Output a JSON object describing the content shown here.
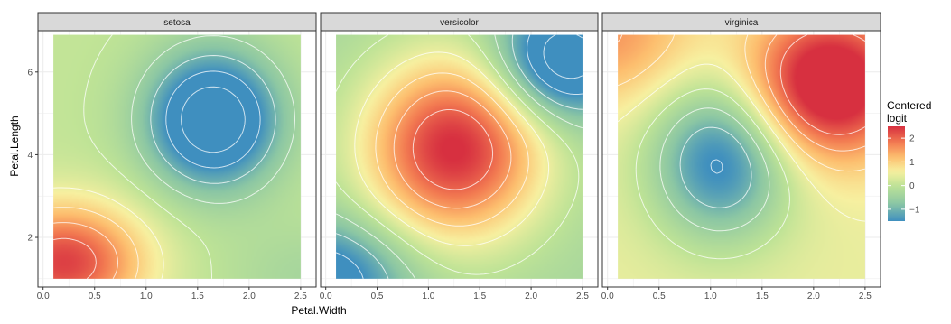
{
  "chart_data": {
    "type": "heatmap",
    "facets": [
      "setosa",
      "versicolor",
      "virginica"
    ],
    "xlabel": "Petal.Width",
    "ylabel": "Petal.Length",
    "xlim": [
      -0.05,
      2.65
    ],
    "ylim": [
      0.8,
      7.0
    ],
    "x_ticks": [
      0.0,
      0.5,
      1.0,
      1.5,
      2.0,
      2.5
    ],
    "x_tick_labels": [
      "0.0",
      "0.5",
      "1.0",
      "1.5",
      "2.0",
      "2.5"
    ],
    "y_ticks": [
      2,
      4,
      6
    ],
    "y_tick_labels": [
      "2",
      "4",
      "6"
    ],
    "grid": true,
    "data_extent": {
      "x": [
        0.1,
        2.5
      ],
      "y": [
        1.0,
        6.9
      ]
    },
    "legend": {
      "title_lines": [
        "Centered",
        "logit"
      ],
      "position": "right",
      "range": [
        -1.5,
        2.5
      ],
      "breaks": [
        2,
        1,
        0,
        -1
      ],
      "break_labels": [
        "2",
        "1",
        "0",
        "−1"
      ]
    },
    "colors": {
      "low": "#3f8fbf",
      "mid_low": "#aad8a0",
      "mid": "#f7f7b0",
      "mid_high": "#fdbf6f",
      "high": "#e03c43",
      "contour": "#ffffff",
      "strip_fill": "#d9d9d9",
      "panel_background": "#ebebeb"
    },
    "series": [
      {
        "facet": "setosa",
        "field": [
          {
            "x": 1.65,
            "y": 4.85,
            "sx": 0.45,
            "sy": 1.15,
            "a": -2.6
          },
          {
            "x": 0.2,
            "y": 1.4,
            "sx": 0.55,
            "sy": 1.0,
            "a": 2.3
          },
          {
            "x": 2.6,
            "y": 1.0,
            "sx": 0.6,
            "sy": 1.0,
            "a": -0.4
          }
        ],
        "offset": 0.05
      },
      {
        "facet": "versicolor",
        "field": [
          {
            "x": 1.25,
            "y": 4.15,
            "sx": 0.62,
            "sy": 1.55,
            "a": 2.9
          },
          {
            "x": 2.3,
            "y": 6.3,
            "sx": 0.45,
            "sy": 1.0,
            "a": -2.2
          },
          {
            "x": 0.0,
            "y": 1.0,
            "sx": 0.55,
            "sy": 1.0,
            "a": -1.6
          }
        ],
        "offset": -0.35
      },
      {
        "facet": "virginica",
        "field": [
          {
            "x": 2.15,
            "y": 5.7,
            "sx": 0.55,
            "sy": 1.25,
            "a": 2.7
          },
          {
            "x": 1.1,
            "y": 3.85,
            "sx": 0.48,
            "sy": 1.35,
            "a": -2.1
          },
          {
            "x": 0.0,
            "y": 6.9,
            "sx": 0.6,
            "sy": 1.2,
            "a": 1.1
          }
        ],
        "offset": 0.45
      }
    ]
  }
}
